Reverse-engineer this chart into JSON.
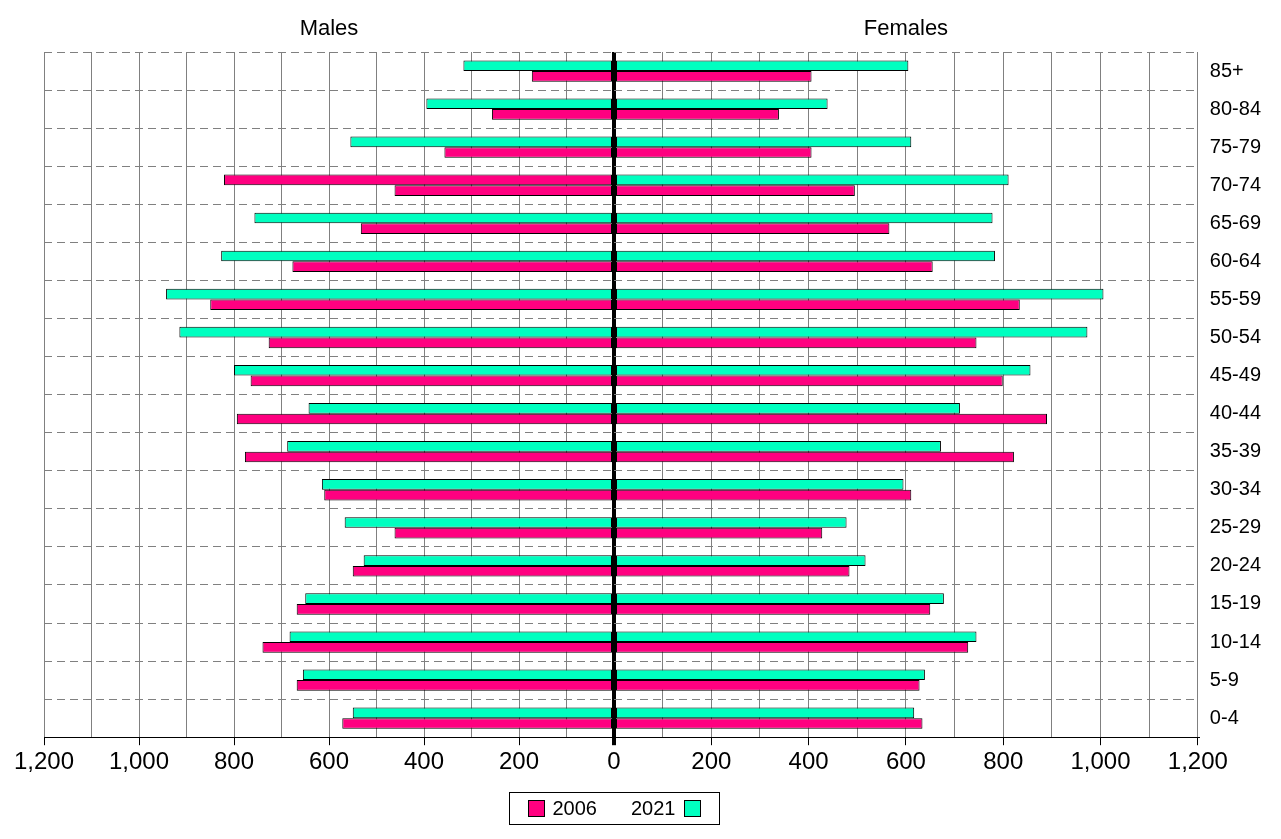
{
  "chart_data": [
    {
      "type": "bar",
      "orientation": "horizontal",
      "title": "Males",
      "tick_labels": "x",
      "categories": [
        null,
        null,
        null,
        null,
        null,
        null,
        null,
        null,
        null,
        null,
        null,
        null,
        null,
        null,
        null,
        null,
        null,
        null
      ],
      "series": [
        {
          "name": "2021",
          "color": "#00ffc0",
          "colors": [
            "#00ffc0",
            "#00ffc0",
            "#00ffc0",
            "#ff0080",
            "#00ffc0",
            "#00ffc0",
            "#00ffc0",
            "#00ffc0",
            "#00ffc0",
            "#00ffc0",
            "#00ffc0",
            "#00ffc0",
            "#00ffc0",
            "#00ffc0",
            "#00ffc0",
            "#00ffc0",
            "#00ffc0",
            "#00ffc0"
          ],
          "values": [
            317,
            395,
            555,
            821,
            757,
            827,
            943,
            915,
            800,
            643,
            688,
            615,
            567,
            527,
            650,
            683,
            655,
            550
          ]
        },
        {
          "name": "2006",
          "color": "#ff0080",
          "values": [
            173,
            257,
            357,
            462,
            533,
            677,
            850,
            727,
            765,
            794,
            777,
            610,
            462,
            550,
            668,
            740,
            668,
            572
          ]
        }
      ],
      "xlim": [
        1200,
        0
      ],
      "xticks": [
        {
          "value": 1200,
          "label": "1,200"
        },
        {
          "value": 1100,
          "label": null
        },
        {
          "value": 1000,
          "label": "1,000"
        },
        {
          "value": 900,
          "label": null
        },
        800,
        {
          "value": 700,
          "label": null
        },
        600,
        {
          "value": 500,
          "label": null
        },
        400,
        {
          "value": 300,
          "label": null
        },
        200,
        {
          "value": 100,
          "label": null
        },
        {
          "value": 0,
          "label": null
        }
      ],
      "grid": true,
      "legend": "bottom"
    },
    {
      "type": "bar",
      "orientation": "horizontal",
      "title": "Females",
      "categories": [
        "85+",
        "80-84",
        "75-79",
        "70-74",
        "65-69",
        "60-64",
        "55-59",
        "50-54",
        "45-49",
        "40-44",
        "35-39",
        "30-34",
        "25-29",
        "20-24",
        "15-19",
        "10-14",
        "5-9",
        "0-4"
      ],
      "series": [
        {
          "color": "#00ffc0",
          "values": [
            605,
            439,
            611,
            811,
            778,
            783,
            1006,
            973,
            856,
            711,
            672,
            595,
            478,
            517,
            678,
            745,
            639,
            617
          ]
        },
        {
          "color": "#ff0080",
          "values": [
            406,
            339,
            406,
            495,
            566,
            655,
            834,
            745,
            799,
            890,
            822,
            611,
            428,
            484,
            650,
            728,
            628,
            634
          ]
        }
      ],
      "xlim": [
        0,
        1200
      ],
      "xticks": [
        0,
        {
          "value": 100,
          "label": null
        },
        200,
        {
          "value": 300,
          "label": null
        },
        400,
        {
          "value": 500,
          "label": null
        },
        600,
        {
          "value": 700,
          "label": null
        },
        800,
        {
          "value": 900,
          "label": null
        },
        {
          "value": 1000,
          "label": "1,000"
        },
        {
          "value": 1100,
          "label": null
        },
        {
          "value": 1200,
          "label": "1,200"
        }
      ],
      "grid": true
    }
  ]
}
